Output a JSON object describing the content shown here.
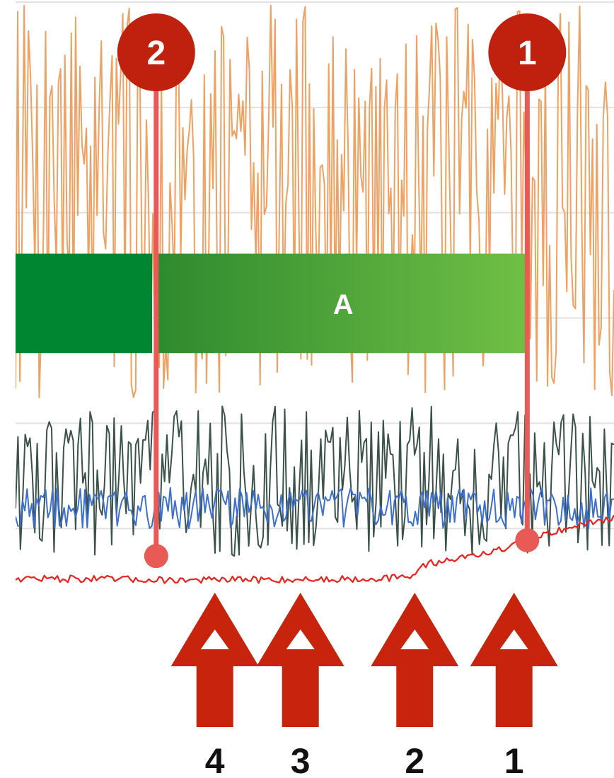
{
  "chart_data": {
    "type": "line",
    "title": "",
    "xlabel": "",
    "ylabel": "",
    "grid": true,
    "x_range": [
      0,
      100
    ],
    "y_range": [
      0,
      100
    ],
    "gridlines_y": [
      100,
      82,
      64,
      46,
      28,
      10
    ],
    "series": [
      {
        "key": "orange",
        "color": "#f0a060",
        "baseline": 66,
        "amplitude": 34,
        "seed": 7,
        "points": 280
      },
      {
        "key": "dark",
        "color": "#3b5249",
        "baseline": 18,
        "amplitude": 13,
        "seed": 19,
        "points": 250
      },
      {
        "key": "blue",
        "color": "#3d6fd1",
        "baseline": 13.5,
        "amplitude": 3.5,
        "seed": 31,
        "points": 260
      },
      {
        "key": "red",
        "color": "#e8231e",
        "seed": 47,
        "points": 230,
        "trend": [
          [
            0,
            1.5
          ],
          [
            28,
            1.2
          ],
          [
            50,
            1.3
          ],
          [
            66,
            1.6
          ],
          [
            68,
            3.8
          ],
          [
            82,
            6.5
          ],
          [
            86,
            8.5
          ],
          [
            100,
            12.0
          ]
        ],
        "noise": 0.6
      }
    ],
    "band": {
      "label": "A",
      "x_start": 24,
      "x_end": 85.5,
      "y_low": 40,
      "y_high": 57,
      "color_left": "#008530",
      "color_start": "#2f8a2f",
      "color_end": "#70bf45"
    },
    "markers": [
      {
        "label": "2",
        "x": 23.5,
        "y_dot": 5.3
      },
      {
        "label": "1",
        "x": 85.5,
        "y_dot": 8.0
      }
    ],
    "arrows": [
      {
        "label": "4",
        "x": 33.3
      },
      {
        "label": "3",
        "x": 47.6
      },
      {
        "label": "2",
        "x": 66.7
      },
      {
        "label": "1",
        "x": 83.3
      }
    ],
    "colors": {
      "marker": "#c0210f",
      "marker_line": "#e85a55",
      "arrow": "#c8230c",
      "gridline": "#e2e2e2"
    }
  }
}
